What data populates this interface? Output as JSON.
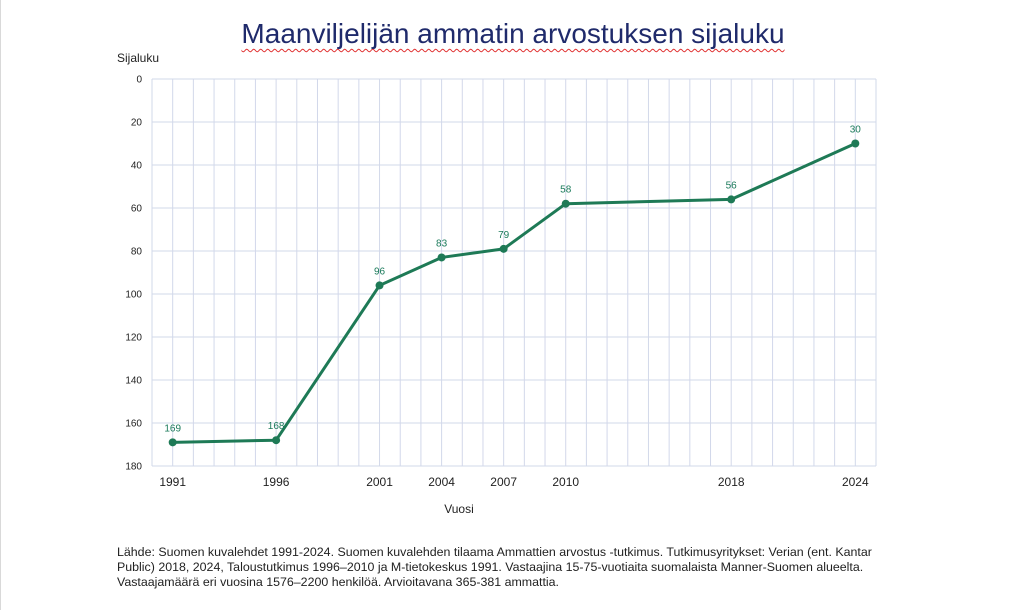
{
  "chart_data": {
    "type": "line",
    "title": "Maanviljelijän ammatin arvostuksen sijaluku",
    "xlabel": "Vuosi",
    "ylabel": "Sijaluku",
    "x": [
      1991,
      1996,
      2001,
      2004,
      2007,
      2010,
      2018,
      2024
    ],
    "x_tick_labels": [
      "1991",
      "1996",
      "2001",
      "2004",
      "2007",
      "2010",
      "2018",
      "2024"
    ],
    "xlim": [
      1990,
      2025
    ],
    "y": [
      169,
      168,
      96,
      83,
      79,
      58,
      56,
      30
    ],
    "data_labels": [
      "169",
      "168",
      "96",
      "83",
      "79",
      "58",
      "56",
      "30"
    ],
    "ylim": [
      0,
      180
    ],
    "y_reversed": true,
    "y_ticks": [
      0,
      20,
      40,
      60,
      80,
      100,
      120,
      140,
      160,
      180
    ],
    "grid": true,
    "line_color": "#1e7a56",
    "grid_color": "#d2d8ea"
  },
  "source_note": "Lähde: Suomen kuvalehdet 1991-2024. Suomen kuvalehden tilaama Ammattien arvostus -tutkimus. Tutkimusyritykset: Verian (ent. Kantar Public) 2018, 2024, Taloustutkimus 1996–2010 ja M-tietokeskus 1991. Vastaajina 15-75-vuotiaita suomalaista Manner-Suomen alueelta. Vastaajamäärä eri vuosina 1576–2200 henkilöä. Arvioitavana 365-381 ammattia."
}
